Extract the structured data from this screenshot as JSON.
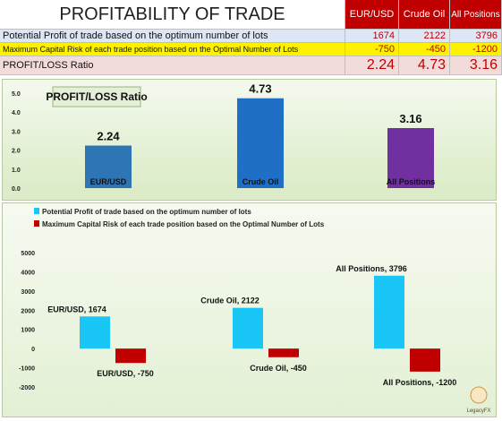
{
  "table": {
    "title": "PROFITABILITY OF TRADE",
    "headers": [
      "EUR/USD",
      "Crude Oil",
      "All Positions"
    ],
    "rows": [
      {
        "label": "Potential Profit of trade based on the optimum number of lots",
        "values": [
          "1674",
          "2122",
          "3796"
        ]
      },
      {
        "label": "Maximum Capital Risk of each trade position based on the Optimal Number of Lots",
        "values": [
          "-750",
          "-450",
          "-1200"
        ]
      },
      {
        "label": "PROFIT/LOSS Ratio",
        "values": [
          "2.24",
          "4.73",
          "3.16"
        ]
      }
    ]
  },
  "chart_data": [
    {
      "type": "bar",
      "title": "PROFIT/LOSS Ratio",
      "categories": [
        "EUR/USD",
        "Crude Oil",
        "All Positions"
      ],
      "values": [
        2.24,
        4.73,
        3.16
      ],
      "value_labels": [
        "2.24",
        "4.73",
        "3.16"
      ],
      "bar_colors": [
        "#2e75b6",
        "#1f6fc6",
        "#7030a0"
      ],
      "ylim": [
        0,
        5
      ],
      "yticks": [
        "0.0",
        "1.0",
        "2.0",
        "3.0",
        "4.0",
        "5.0"
      ],
      "grid": false
    },
    {
      "type": "bar",
      "categories": [
        "EUR/USD",
        "Crude Oil",
        "All Positions"
      ],
      "legend_position": "top",
      "series": [
        {
          "name": "Potential Profit of trade based on the optimum number of lots",
          "values": [
            1674,
            2122,
            3796
          ],
          "color": "#19c6f5",
          "labels": [
            "EUR/USD, 1674",
            "Crude Oil, 2122",
            "All Positions, 3796"
          ]
        },
        {
          "name": "Maximum Capital Risk of each trade position based on the Optimal Number of Lots",
          "values": [
            -750,
            -450,
            -1200
          ],
          "color": "#c00000",
          "labels": [
            "EUR/USD, -750",
            "Crude Oil, -450",
            "All Positions, -1200"
          ]
        }
      ],
      "ylim": [
        -2000,
        5000
      ],
      "yticks": [
        "5000",
        "4000",
        "3000",
        "2000",
        "1000",
        "0",
        "-1000",
        "-2000"
      ],
      "grid": false
    }
  ],
  "logo": {
    "text": "LegacyFX"
  }
}
